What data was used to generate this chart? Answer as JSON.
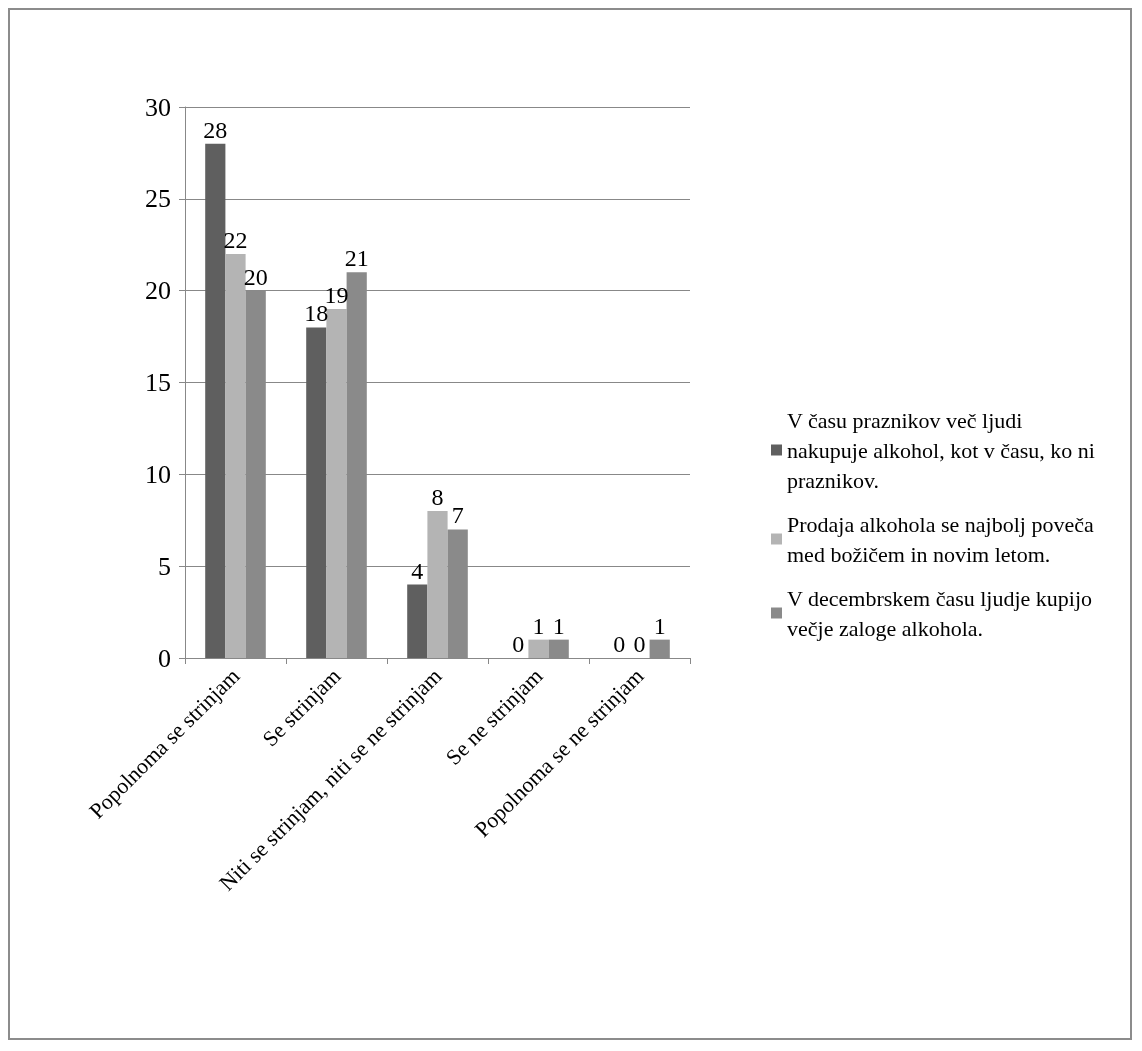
{
  "chart_data": {
    "type": "bar",
    "categories": [
      "Popolnoma se strinjam",
      "Se strinjam",
      "Niti se strinjam, niti se ne strinjam",
      "Se ne strinjam",
      "Popolnoma se ne strinjam"
    ],
    "series": [
      {
        "name": "V času praznikov več ljudi nakupuje alkohol, kot v času, ko ni praznikov.",
        "color": "#5f5f5f",
        "values": [
          28,
          18,
          4,
          0,
          0
        ]
      },
      {
        "name": "Prodaja alkohola se najbolj poveča med božičem in novim letom.",
        "color": "#b4b4b4",
        "values": [
          22,
          19,
          8,
          1,
          0
        ]
      },
      {
        "name": "V decembrskem času ljudje kupijo večje zaloge alkohola.",
        "color": "#8a8a8a",
        "values": [
          20,
          21,
          7,
          1,
          1
        ]
      }
    ],
    "ylim": [
      0,
      30
    ],
    "yticks": [
      0,
      5,
      10,
      15,
      20,
      25,
      30
    ],
    "grid": "y",
    "legend": "right",
    "data_labels": true
  }
}
